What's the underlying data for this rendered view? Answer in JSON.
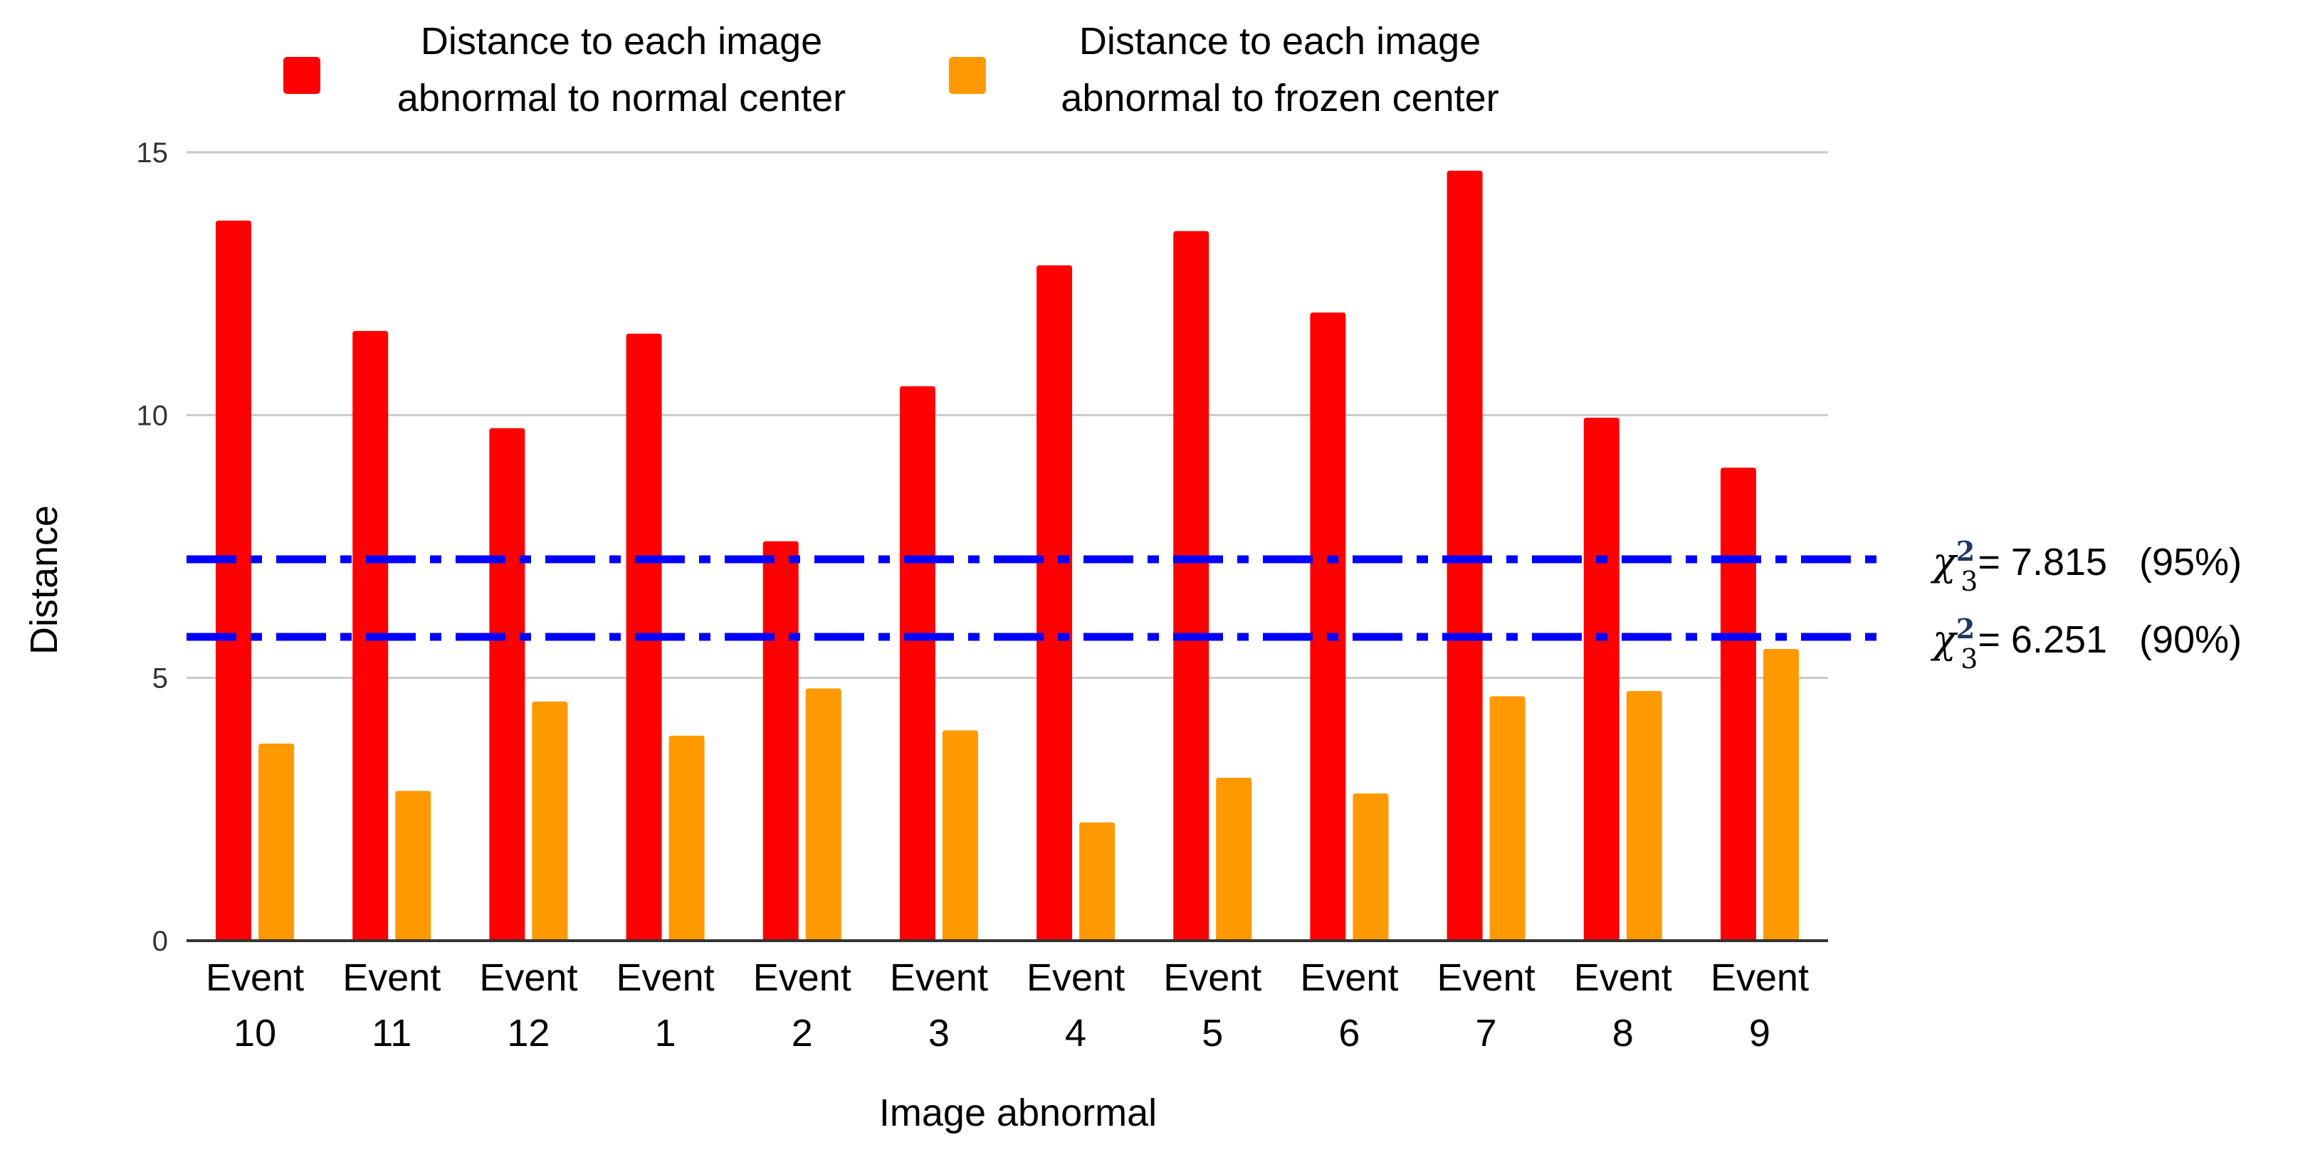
{
  "chart_data": {
    "type": "bar",
    "title": "",
    "xlabel": "Image abnormal",
    "ylabel": "Distance",
    "ylim": [
      0,
      15
    ],
    "yticks": [
      0,
      5,
      10,
      15
    ],
    "grid": true,
    "legend_position": "top",
    "categories": [
      [
        "Event",
        "10"
      ],
      [
        "Event",
        "11"
      ],
      [
        "Event",
        "12"
      ],
      [
        "Event",
        "1"
      ],
      [
        "Event",
        "2"
      ],
      [
        "Event",
        "3"
      ],
      [
        "Event",
        "4"
      ],
      [
        "Event",
        "5"
      ],
      [
        "Event",
        "6"
      ],
      [
        "Event",
        "7"
      ],
      [
        "Event",
        "8"
      ],
      [
        "Event",
        "9"
      ]
    ],
    "series": [
      {
        "name": [
          "Distance to each image",
          "abnormal to normal center"
        ],
        "color": "#ff0000",
        "values": [
          13.7,
          11.6,
          9.75,
          11.55,
          7.6,
          10.55,
          12.85,
          13.5,
          11.95,
          14.65,
          9.95,
          9.0
        ]
      },
      {
        "name": [
          "Distance to each image",
          "abnormal to frozen center"
        ],
        "color": "#ff9900",
        "values": [
          3.75,
          2.85,
          4.55,
          3.9,
          4.8,
          4.0,
          2.25,
          3.1,
          2.8,
          4.65,
          4.75,
          5.55
        ]
      }
    ],
    "reference_lines": [
      {
        "value": 7.815,
        "symbol": "χ",
        "sup": "2",
        "sub": "3",
        "text": "= 7.815   (95%)",
        "color": "#0000ff"
      },
      {
        "value": 6.251,
        "symbol": "χ",
        "sup": "2",
        "sub": "3",
        "text": "= 6.251   (90%)",
        "color": "#0000ff"
      }
    ]
  }
}
